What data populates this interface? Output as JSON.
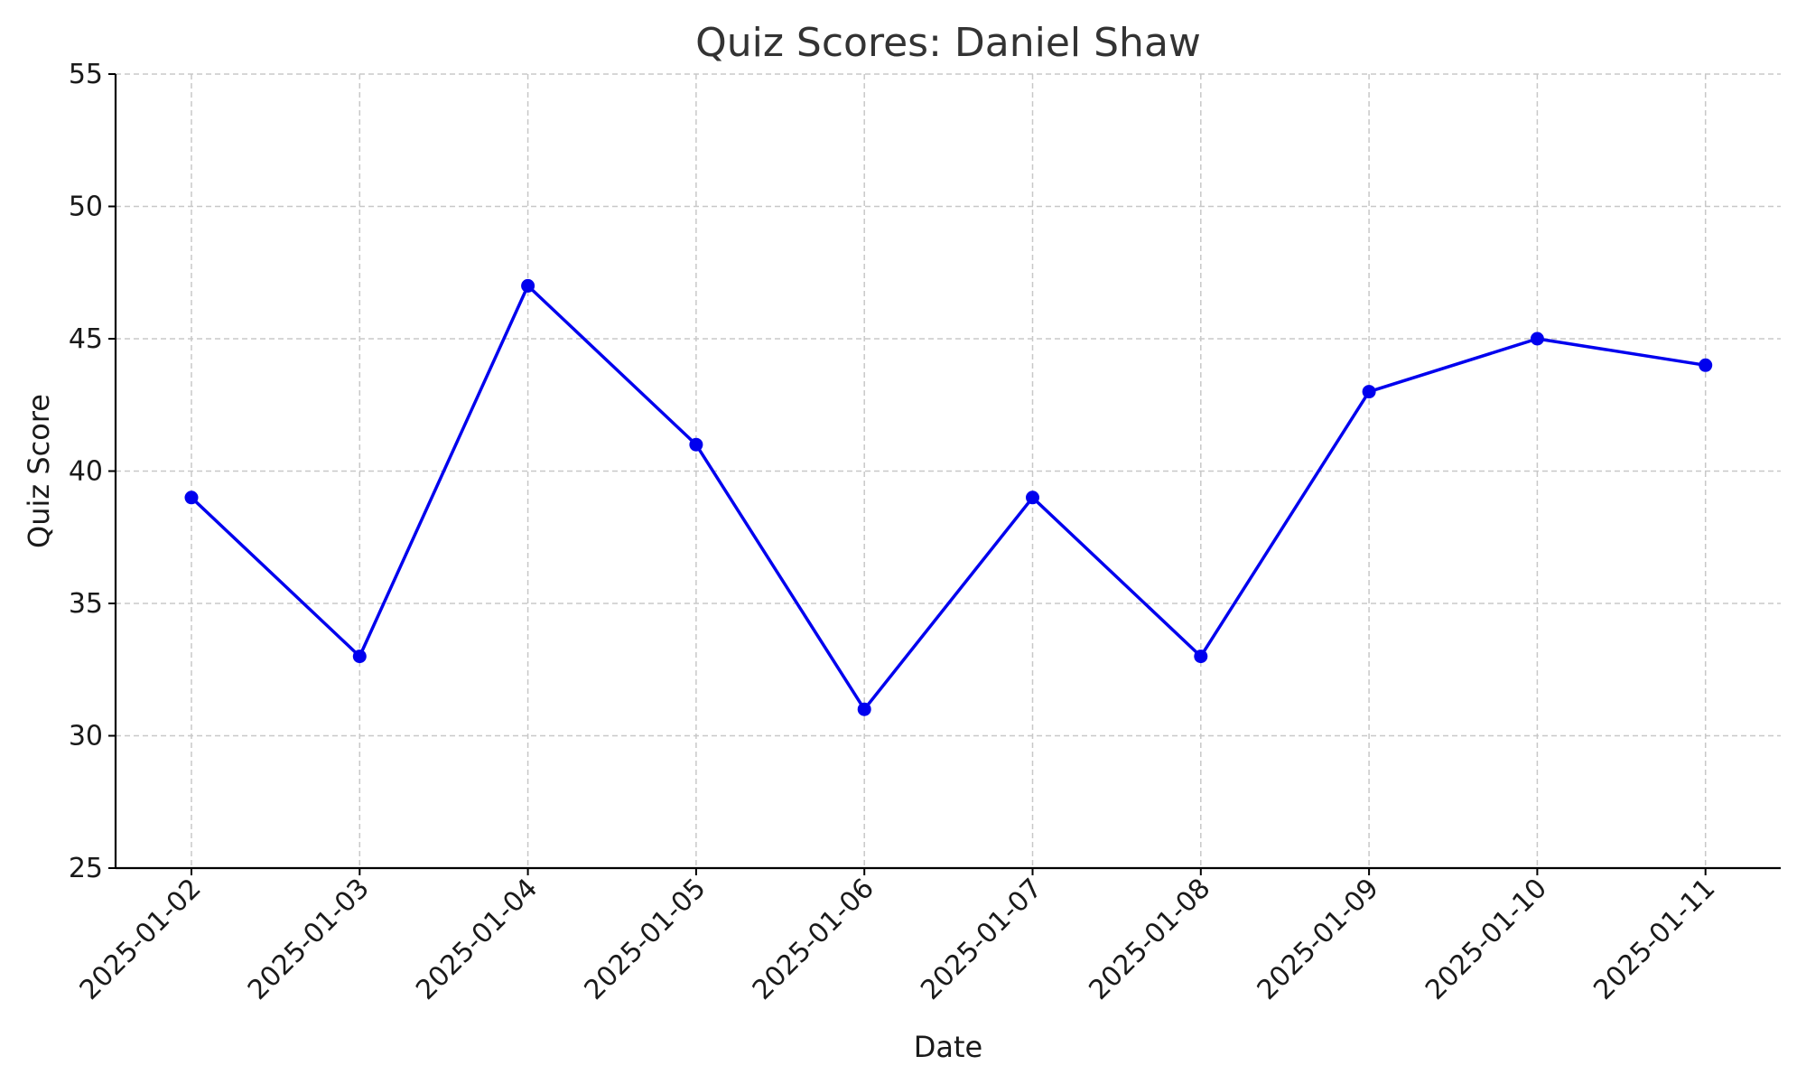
{
  "chart_data": {
    "type": "line",
    "title": "Quiz Scores: Daniel Shaw",
    "xlabel": "Date",
    "ylabel": "Quiz Score",
    "categories": [
      "2025-01-02",
      "2025-01-03",
      "2025-01-04",
      "2025-01-05",
      "2025-01-06",
      "2025-01-07",
      "2025-01-08",
      "2025-01-09",
      "2025-01-10",
      "2025-01-11"
    ],
    "series": [
      {
        "values": [
          39,
          33,
          47,
          41,
          31,
          39,
          33,
          43,
          45,
          44
        ],
        "color": "#0000ee",
        "marker": "circle"
      }
    ],
    "ylim": [
      25,
      55
    ],
    "yticks": [
      25,
      30,
      35,
      40,
      45,
      50,
      55
    ],
    "grid": true,
    "legend": "none"
  }
}
